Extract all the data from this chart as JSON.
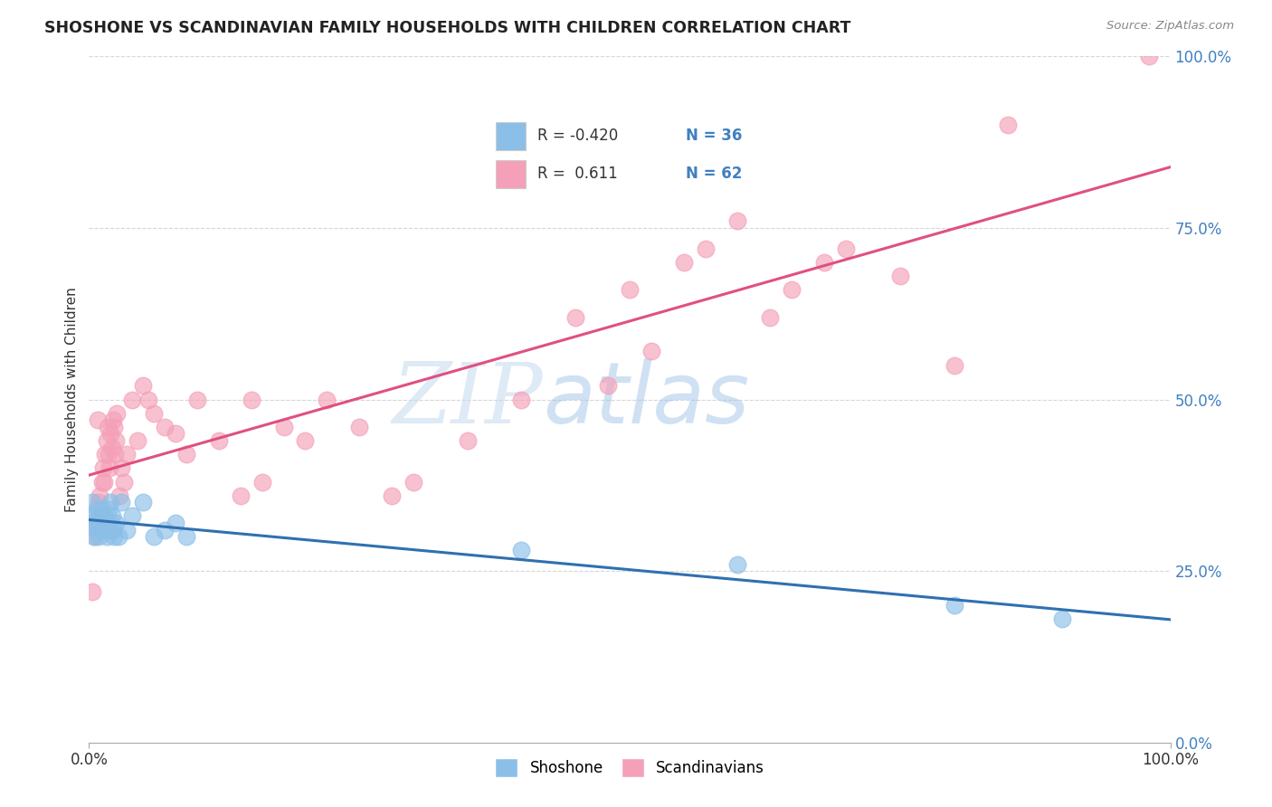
{
  "title": "SHOSHONE VS SCANDINAVIAN FAMILY HOUSEHOLDS WITH CHILDREN CORRELATION CHART",
  "source": "Source: ZipAtlas.com",
  "ylabel": "Family Households with Children",
  "ytick_values": [
    0.0,
    25.0,
    50.0,
    75.0,
    100.0
  ],
  "legend_label1": "Shoshone",
  "legend_label2": "Scandinavians",
  "R1": -0.42,
  "N1": 36,
  "R2": 0.611,
  "N2": 62,
  "blue_color": "#8bbfe8",
  "blue_line_color": "#3070b0",
  "pink_color": "#f4a0b8",
  "pink_line_color": "#e05080",
  "watermark_zip": "ZIP",
  "watermark_atlas": "atlas",
  "background_color": "#ffffff",
  "grid_color": "#cccccc",
  "shoshone_x": [
    0.2,
    0.3,
    0.4,
    0.5,
    0.6,
    0.7,
    0.8,
    0.9,
    1.0,
    1.1,
    1.2,
    1.3,
    1.4,
    1.5,
    1.6,
    1.7,
    1.8,
    1.9,
    2.0,
    2.1,
    2.2,
    2.3,
    2.5,
    2.7,
    3.0,
    3.5,
    4.0,
    5.0,
    6.0,
    7.0,
    8.0,
    9.0,
    40.0,
    60.0,
    80.0,
    90.0
  ],
  "shoshone_y": [
    32,
    35,
    33,
    30,
    31,
    34,
    32,
    30,
    33,
    31,
    34,
    32,
    31,
    33,
    30,
    31,
    34,
    32,
    35,
    33,
    31,
    30,
    32,
    30,
    35,
    31,
    33,
    35,
    30,
    31,
    32,
    30,
    28,
    26,
    20,
    18
  ],
  "scandinavian_x": [
    0.3,
    0.5,
    0.7,
    0.8,
    0.9,
    1.0,
    1.1,
    1.2,
    1.3,
    1.4,
    1.5,
    1.6,
    1.7,
    1.8,
    1.9,
    2.0,
    2.1,
    2.2,
    2.3,
    2.4,
    2.5,
    2.6,
    2.8,
    3.0,
    3.2,
    3.5,
    4.0,
    4.5,
    5.0,
    5.5,
    6.0,
    7.0,
    8.0,
    9.0,
    10.0,
    12.0,
    14.0,
    15.0,
    16.0,
    18.0,
    20.0,
    22.0,
    25.0,
    28.0,
    30.0,
    35.0,
    40.0,
    45.0,
    48.0,
    50.0,
    52.0,
    55.0,
    57.0,
    60.0,
    63.0,
    65.0,
    68.0,
    70.0,
    75.0,
    80.0,
    85.0,
    98.0
  ],
  "scandinavian_y": [
    22,
    30,
    32,
    47,
    35,
    36,
    33,
    38,
    40,
    38,
    42,
    44,
    46,
    42,
    40,
    45,
    43,
    47,
    46,
    42,
    44,
    48,
    36,
    40,
    38,
    42,
    50,
    44,
    52,
    50,
    48,
    46,
    45,
    42,
    50,
    44,
    36,
    50,
    38,
    46,
    44,
    50,
    46,
    36,
    38,
    44,
    50,
    62,
    52,
    66,
    57,
    70,
    72,
    76,
    62,
    66,
    70,
    72,
    68,
    55,
    90,
    100
  ]
}
